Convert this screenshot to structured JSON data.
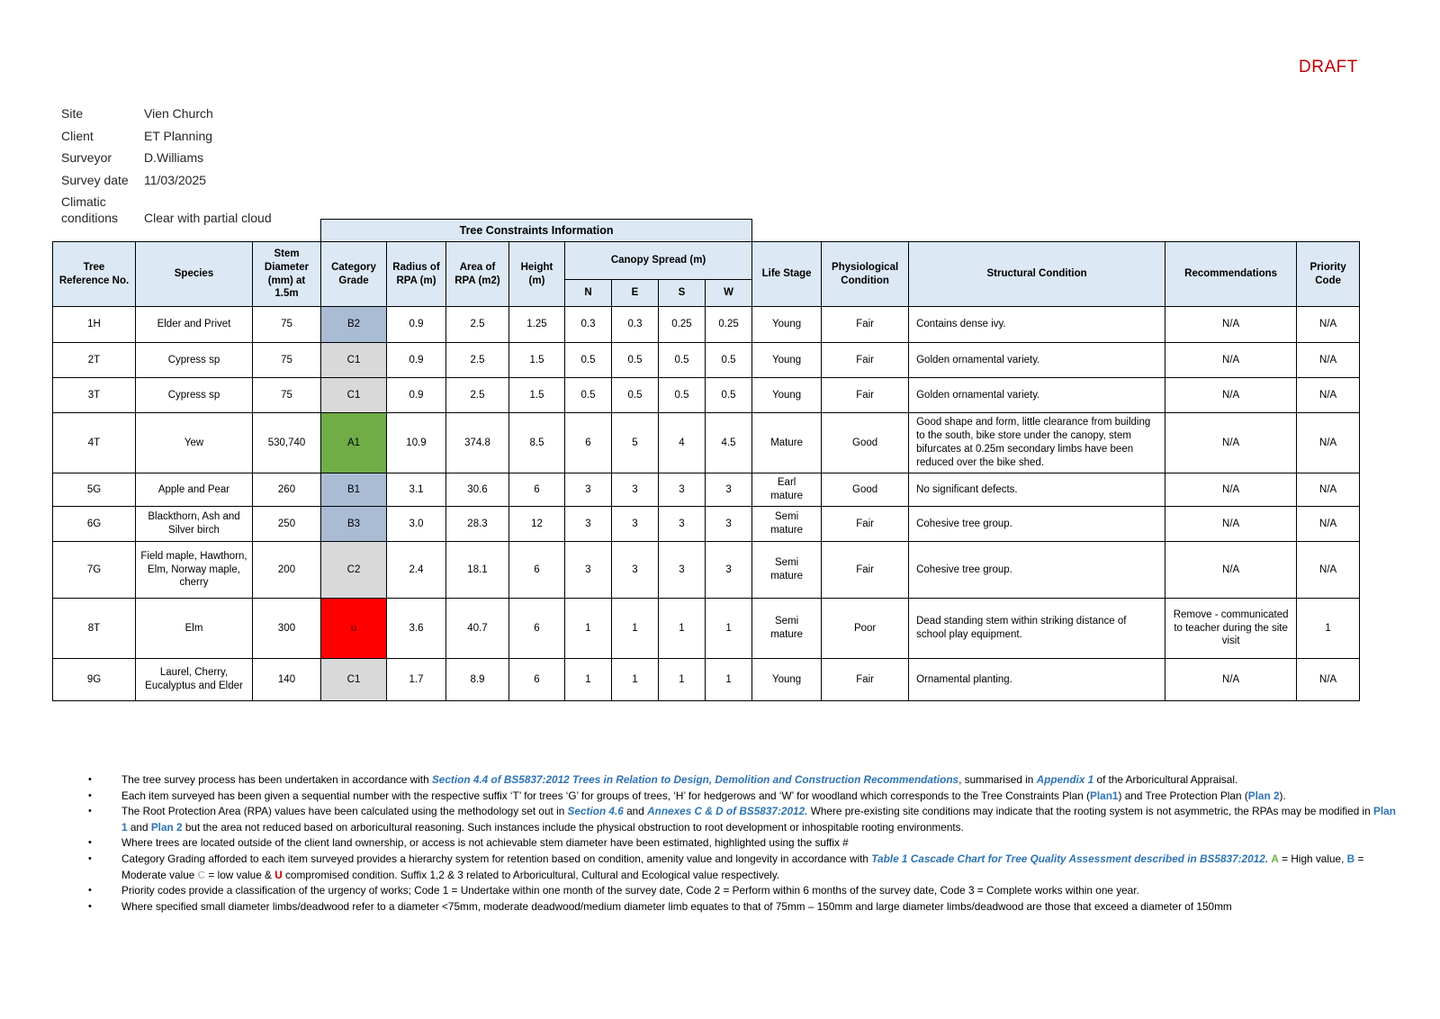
{
  "draft_label": "DRAFT",
  "meta": {
    "rows": [
      {
        "label": "Site",
        "value": "Vien Church"
      },
      {
        "label": "Client",
        "value": "ET Planning"
      },
      {
        "label": "Surveyor",
        "value": "D.Williams"
      },
      {
        "label": "Survey date",
        "value": "11/03/2025"
      },
      {
        "label": "Climatic conditions",
        "value": "Clear with partial cloud"
      }
    ]
  },
  "table": {
    "band_title": "Tree Constraints Information",
    "columns": [
      "Tree Reference No.",
      "Species",
      "Stem Diameter (mm) at 1.5m",
      "Category Grade",
      "Radius of RPA (m)",
      "Area of RPA (m2)",
      "Height (m)",
      "Canopy Spread (m)",
      "Life Stage",
      "Physiological Condition",
      "Structural Condition",
      "Recommendations",
      "Priority Code"
    ],
    "canopy_subcolumns": [
      "N",
      "E",
      "S",
      "W"
    ],
    "rows": [
      {
        "ref": "1H",
        "species": "Elder and Privet",
        "stem": "75",
        "category": "B2",
        "category_style": "b",
        "radius": "0.9",
        "area": "2.5",
        "height": "1.25",
        "canopy": [
          "0.3",
          "0.3",
          "0.25",
          "0.25"
        ],
        "life_stage": "Young",
        "physiological": "Fair",
        "structural": "Contains dense ivy.",
        "recommendations": "N/A",
        "priority": "N/A"
      },
      {
        "ref": "2T",
        "species": "Cypress sp",
        "stem": "75",
        "category": "C1",
        "category_style": "c",
        "radius": "0.9",
        "area": "2.5",
        "height": "1.5",
        "canopy": [
          "0.5",
          "0.5",
          "0.5",
          "0.5"
        ],
        "life_stage": "Young",
        "physiological": "Fair",
        "structural": "Golden ornamental variety.",
        "recommendations": "N/A",
        "priority": "N/A"
      },
      {
        "ref": "3T",
        "species": "Cypress sp",
        "stem": "75",
        "category": "C1",
        "category_style": "c",
        "radius": "0.9",
        "area": "2.5",
        "height": "1.5",
        "canopy": [
          "0.5",
          "0.5",
          "0.5",
          "0.5"
        ],
        "life_stage": "Young",
        "physiological": "Fair",
        "structural": "Golden ornamental variety.",
        "recommendations": "N/A",
        "priority": "N/A"
      },
      {
        "ref": "4T",
        "species": "Yew",
        "stem": "530,740",
        "category": "A1",
        "category_style": "a",
        "radius": "10.9",
        "area": "374.8",
        "height": "8.5",
        "canopy": [
          "6",
          "5",
          "4",
          "4.5"
        ],
        "life_stage": "Mature",
        "physiological": "Good",
        "structural": "Good shape and form, little clearance from building to the south, bike store under the canopy, stem bifurcates at 0.25m secondary limbs have been reduced over the bike shed.",
        "recommendations": "N/A",
        "priority": "N/A"
      },
      {
        "ref": "5G",
        "species": "Apple and Pear",
        "stem": "260",
        "category": "B1",
        "category_style": "b",
        "radius": "3.1",
        "area": "30.6",
        "height": "6",
        "canopy": [
          "3",
          "3",
          "3",
          "3"
        ],
        "life_stage": "Earl mature",
        "physiological": "Good",
        "structural": "No significant defects.",
        "recommendations": "N/A",
        "priority": "N/A"
      },
      {
        "ref": "6G",
        "species": "Blackthorn, Ash and Silver birch",
        "stem": "250",
        "category": "B3",
        "category_style": "b",
        "radius": "3.0",
        "area": "28.3",
        "height": "12",
        "canopy": [
          "3",
          "3",
          "3",
          "3"
        ],
        "life_stage": "Semi mature",
        "physiological": "Fair",
        "structural": "Cohesive tree group.",
        "recommendations": "N/A",
        "priority": "N/A"
      },
      {
        "ref": "7G",
        "species": "Field maple, Hawthorn, Elm, Norway maple, cherry",
        "stem": "200",
        "category": "C2",
        "category_style": "c",
        "radius": "2.4",
        "area": "18.1",
        "height": "6",
        "canopy": [
          "3",
          "3",
          "3",
          "3"
        ],
        "life_stage": "Semi mature",
        "physiological": "Fair",
        "structural": "Cohesive tree group.",
        "recommendations": "N/A",
        "priority": "N/A"
      },
      {
        "ref": "8T",
        "species": "Elm",
        "stem": "300",
        "category": "u",
        "category_style": "u",
        "radius": "3.6",
        "area": "40.7",
        "height": "6",
        "canopy": [
          "1",
          "1",
          "1",
          "1"
        ],
        "life_stage": "Semi mature",
        "physiological": "Poor",
        "structural": "Dead standing stem within striking distance of school play equipment.",
        "recommendations": "Remove - communicated to teacher during the site visit",
        "priority": "1"
      },
      {
        "ref": "9G",
        "species": "Laurel, Cherry, Eucalyptus and Elder",
        "stem": "140",
        "category": "C1",
        "category_style": "c",
        "radius": "1.7",
        "area": "8.9",
        "height": "6",
        "canopy": [
          "1",
          "1",
          "1",
          "1"
        ],
        "life_stage": "Young",
        "physiological": "Fair",
        "structural": "Ornamental planting.",
        "recommendations": "N/A",
        "priority": "N/A"
      }
    ]
  },
  "notes": [
    [
      {
        "t": "The tree survey process has been undertaken in accordance with ",
        "s": "plain"
      },
      {
        "t": "Section 4.4 of BS5837:2012 Trees in Relation to Design, Demolition and Construction Recommendations",
        "s": "ref"
      },
      {
        "t": ", summarised in ",
        "s": "plain"
      },
      {
        "t": "Appendix 1",
        "s": "ref"
      },
      {
        "t": " of the Arboricultural Appraisal.",
        "s": "plain"
      }
    ],
    [
      {
        "t": "Each item surveyed has been given a sequential number with the respective suffix ‘T’ for trees ‘G’ for groups of trees, ‘H’ for hedgerows and ‘W’ for woodland which corresponds to the Tree Constraints Plan (",
        "s": "plain"
      },
      {
        "t": "Plan1",
        "s": "plan"
      },
      {
        "t": ") and Tree Protection Plan (",
        "s": "plain"
      },
      {
        "t": "Plan 2",
        "s": "plan"
      },
      {
        "t": ").",
        "s": "plain"
      }
    ],
    [
      {
        "t": "The Root Protection Area (RPA) values have been calculated using the methodology set out in ",
        "s": "plain"
      },
      {
        "t": "Section 4.6",
        "s": "ref"
      },
      {
        "t": " and ",
        "s": "plain"
      },
      {
        "t": "Annexes C & D of BS5837:2012.",
        "s": "ref"
      },
      {
        "t": " Where pre-existing site conditions may indicate that the rooting system is not asymmetric, the RPAs may be modified in ",
        "s": "plain"
      },
      {
        "t": "Plan 1",
        "s": "plan"
      },
      {
        "t": " and ",
        "s": "plain"
      },
      {
        "t": "Plan 2",
        "s": "plan"
      },
      {
        "t": " but the area not reduced based on arboricultural reasoning. Such instances include the physical obstruction to root development or inhospitable rooting environments.",
        "s": "plain"
      }
    ],
    [
      {
        "t": "Where trees are located outside of the client land ownership, or access is not achievable stem diameter have been estimated, highlighted using the suffix #",
        "s": "plain"
      }
    ],
    [
      {
        "t": "Category Grading afforded to each item surveyed provides a hierarchy system for retention based on condition, amenity value and longevity in accordance with ",
        "s": "plain"
      },
      {
        "t": "Table 1 Cascade Chart for Tree Quality Assessment described in BS5837:2012.",
        "s": "ref"
      },
      {
        "t": " ",
        "s": "plain"
      },
      {
        "t": "A",
        "s": "a"
      },
      {
        "t": " = High value, ",
        "s": "plain"
      },
      {
        "t": "B",
        "s": "b"
      },
      {
        "t": " = Moderate value ",
        "s": "plain"
      },
      {
        "t": "C",
        "s": "c"
      },
      {
        "t": " = low value & ",
        "s": "plain"
      },
      {
        "t": "U",
        "s": "u"
      },
      {
        "t": " compromised condition. Suffix 1,2 & 3 related to Arboricultural, Cultural and Ecological value respectively.",
        "s": "plain"
      }
    ],
    [
      {
        "t": "Priority codes provide a classification of the urgency of works; Code 1 = Undertake within one month of the survey date, Code 2 = Perform within 6 months of the survey date, Code 3 = Complete works within one year.",
        "s": "plain"
      }
    ],
    [
      {
        "t": "Where specified small diameter limbs/deadwood refer to a diameter <75mm, moderate deadwood/medium diameter limb equates to that of 75mm – 150mm and large diameter limbs/deadwood are those that exceed a diameter of 150mm",
        "s": "plain"
      }
    ]
  ],
  "colors": {
    "draft_red": "#c00000",
    "header_bg": "#dce8f4",
    "category_a_green": "#70ad47",
    "category_b_blue": "#a9bcd4",
    "category_c_gray": "#d9d9d9",
    "category_u_red": "#ff0000",
    "reference_blue": "#2e74b5",
    "note_c_gray": "#bfbfbf",
    "note_u_red": "#c00000"
  }
}
